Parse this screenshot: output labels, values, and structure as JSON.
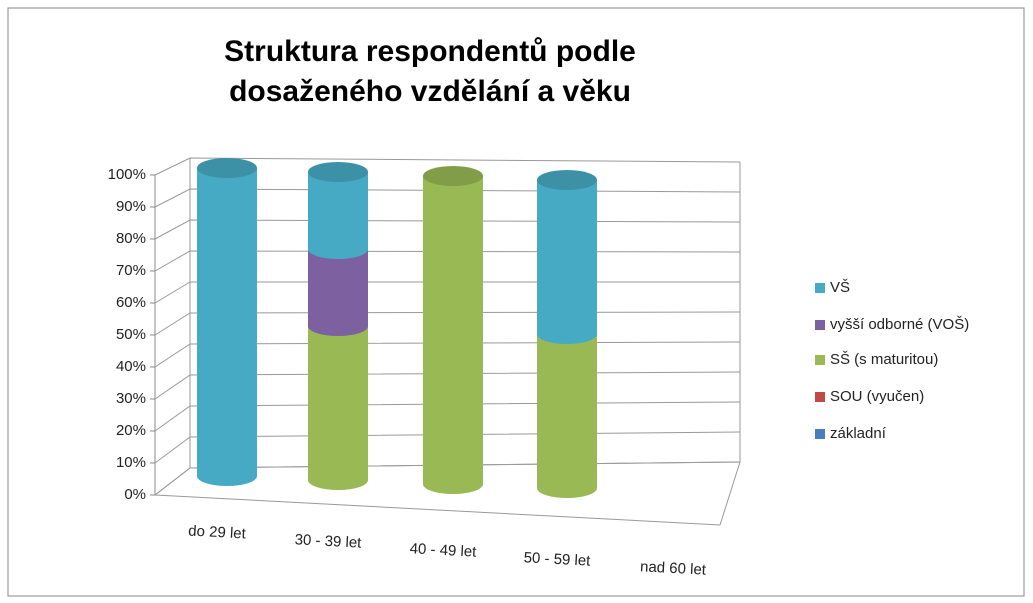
{
  "chart_data": {
    "type": "bar3d-stacked",
    "title": "Struktura respondentů podle dosaženého vzdělání a věku",
    "categories": [
      "do 29 let",
      "30 - 39 let",
      "40 - 49 let",
      "50 - 59 let",
      "nad 60 let"
    ],
    "series": [
      {
        "name": "základní",
        "color": "#4a7ebb",
        "values": [
          0,
          0,
          0,
          0,
          0
        ]
      },
      {
        "name": "SOU (vyučen)",
        "color": "#be4b48",
        "values": [
          0,
          0,
          0,
          0,
          0
        ]
      },
      {
        "name": "SŠ (s maturitou)",
        "color": "#98b954",
        "values": [
          0,
          50,
          100,
          50,
          0
        ]
      },
      {
        "name": "vyšší odborné (VOŠ)",
        "color": "#7d60a0",
        "values": [
          0,
          25,
          0,
          0,
          0
        ]
      },
      {
        "name": "VŠ",
        "color": "#46aac5",
        "values": [
          100,
          25,
          0,
          50,
          0
        ]
      }
    ],
    "ylim": [
      0,
      100
    ],
    "yticks": [
      {
        "value": 0,
        "label": "0%"
      },
      {
        "value": 10,
        "label": "10%"
      },
      {
        "value": 20,
        "label": "20%"
      },
      {
        "value": 30,
        "label": "30%"
      },
      {
        "value": 40,
        "label": "40%"
      },
      {
        "value": 50,
        "label": "50%"
      },
      {
        "value": 60,
        "label": "60%"
      },
      {
        "value": 70,
        "label": "70%"
      },
      {
        "value": 80,
        "label": "80%"
      },
      {
        "value": 90,
        "label": "90%"
      },
      {
        "value": 100,
        "label": "100%"
      }
    ],
    "grid": true,
    "legend": "right"
  }
}
